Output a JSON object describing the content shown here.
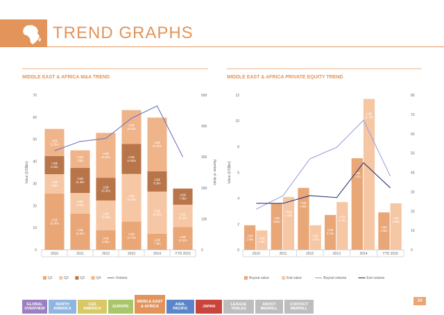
{
  "header": {
    "title": "TREND GRAPHS",
    "icon": "africa-map-icon"
  },
  "colors": {
    "accent": "#e2945b",
    "q1": "#e9a676",
    "q2": "#f6c7a4",
    "q3": "#b9754a",
    "q4": "#f0b48a",
    "volume": "#6d72c6",
    "buyout": "#e9a676",
    "exit": "#f6c7a4",
    "buyout_volume": "#9aa0de",
    "exit_volume": "#28336e"
  },
  "chart_data": [
    {
      "type": "bar",
      "title": "MIDDLE EAST & AFRICA M&A TREND",
      "stacked": true,
      "categories": [
        "2010",
        "2011",
        "2012",
        "2013",
        "2014",
        "YTD 2015"
      ],
      "ylabel": "Value (US$bn)",
      "ylabel_right": "Number of deals",
      "ylim": [
        0,
        70
      ],
      "yticks": [
        0,
        10,
        20,
        30,
        40,
        50,
        60,
        70
      ],
      "ylim_right": [
        0,
        500
      ],
      "yticks_right": [
        0,
        100,
        200,
        300,
        400,
        500
      ],
      "grid": false,
      "legend_position": "bottom",
      "series": [
        {
          "name": "Q1",
          "values": [
            25.4,
            16.4,
            8.8,
            12.7,
            7.3,
            10.2
          ],
          "labels": [
            "US$ 25.4bn",
            "US$ 16.4bn",
            "US$ 8.8bn",
            "US$ 12.7bn",
            "US$ 7.3bn",
            "US$ 10.2bn"
          ]
        },
        {
          "name": "Q2",
          "values": [
            8.8,
            9.3,
            13.5,
            21.6,
            19.0,
            10.2
          ],
          "labels": [
            "US$ 8.8bn",
            "US$ 9.3bn",
            "US$ 13.5bn",
            "US$ 21.6bn",
            "US$ 19.0bn",
            "US$ 10.2bn"
          ]
        },
        {
          "name": "Q3",
          "values": [
            8.2,
            11.4,
            10.3,
            13.6,
            9.2,
            7.3
          ],
          "labels": [
            "US$ 8.2bn",
            "US$ 11.4bn",
            "US$ 10.3bn",
            "US$ 13.6bn",
            "US$ 9.2bn",
            "US$ 7.3bn"
          ]
        },
        {
          "name": "Q4",
          "values": [
            12.3,
            7.9,
            20.3,
            15.3,
            24.3,
            0
          ],
          "labels": [
            "US$ 12.3bn",
            "US$ 7.9bn",
            "US$ 20.3bn",
            "US$ 15.3bn",
            "US$ 24.3bn",
            ""
          ]
        }
      ],
      "line_series": [
        {
          "name": "Volume",
          "axis": "right",
          "values": [
            320,
            350,
            360,
            425,
            465,
            300
          ]
        }
      ]
    },
    {
      "type": "bar",
      "title": "MIDDLE EAST & AFRICA PRIVATE EQUITY TREND",
      "stacked": false,
      "categories": [
        "2010",
        "2011",
        "2012",
        "2013",
        "2014",
        "YTD 2015"
      ],
      "ylabel": "Value (US$bn)",
      "ylim": [
        0,
        12
      ],
      "yticks": [
        0,
        2,
        4,
        6,
        8,
        10,
        12
      ],
      "ylim_right": [
        0,
        80
      ],
      "yticks_right": [
        0,
        10,
        20,
        30,
        40,
        50,
        60,
        70,
        80
      ],
      "grid": false,
      "legend_position": "bottom",
      "series": [
        {
          "name": "Buyout value",
          "values": [
            1.9,
            3.6,
            4.8,
            2.7,
            7.1,
            2.9
          ],
          "labels": [
            "US$ 1.9bn",
            "US$ 3.6bn",
            "US$ 4.8bn",
            "US$ 2.7bn",
            "US$ 7.1bn",
            "US$ 2.9bn"
          ]
        },
        {
          "name": "Exit value",
          "values": [
            1.5,
            4.1,
            1.9,
            3.7,
            11.7,
            3.6
          ],
          "labels": [
            "US$ 1.5bn",
            "US$ 4.1bn",
            "US$ 1.9bn",
            "US$ 3.7bn",
            "US$ 11.7bn",
            "US$ 3.6bn"
          ]
        }
      ],
      "line_series": [
        {
          "name": "Buyout volume",
          "axis": "right",
          "values": [
            21,
            28,
            47,
            53,
            67,
            38
          ]
        },
        {
          "name": "Exit volume",
          "axis": "right",
          "values": [
            24,
            24,
            28,
            27,
            45,
            32
          ]
        }
      ]
    }
  ],
  "nav": {
    "tabs": [
      {
        "label": "GLOBAL\nOVERVIEW",
        "color": "#9b7fc0",
        "active": false
      },
      {
        "label": "NORTH\nAMERICA",
        "color": "#8fb5e0",
        "active": false
      },
      {
        "label": "C&S\nAMERICA",
        "color": "#d9c866",
        "active": false
      },
      {
        "label": "EUROPE",
        "color": "#a9c76a",
        "active": false
      },
      {
        "label": "MIDDLE EAST\n& AFRICA",
        "color": "#e2945b",
        "active": true
      },
      {
        "label": "ASIA-\nPACIFIC",
        "color": "#5a86c8",
        "active": false
      },
      {
        "label": "JAPAN",
        "color": "#c9443a",
        "active": false
      },
      {
        "label": "LEAGUE\nTABLES",
        "color": "#bdbdbd",
        "active": false
      },
      {
        "label": "ABOUT\nMERRILL",
        "color": "#bdbdbd",
        "active": false
      },
      {
        "label": "CONTACT\nMERRILL",
        "color": "#bdbdbd",
        "active": false
      }
    ]
  },
  "page_number": "34"
}
